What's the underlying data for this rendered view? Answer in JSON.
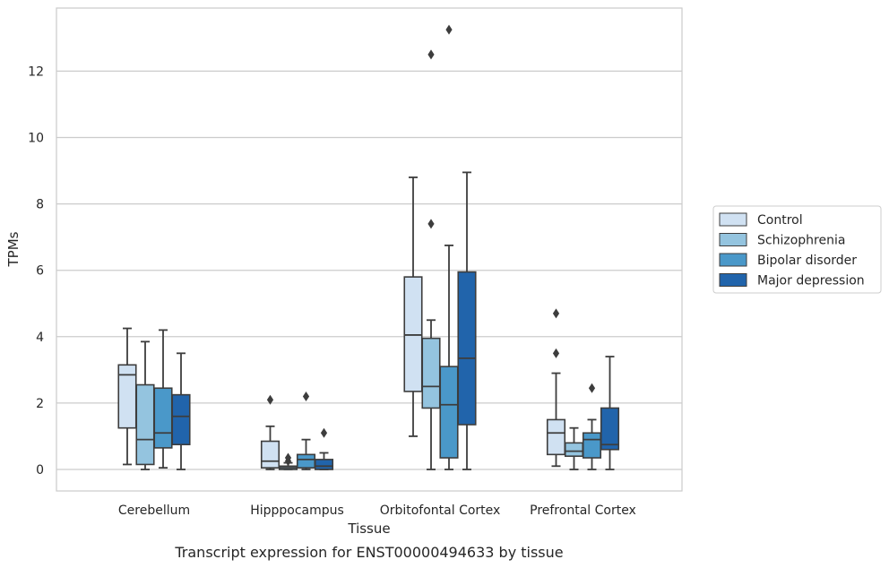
{
  "chart_data": {
    "type": "box",
    "xlabel": "Tissue",
    "ylabel": "TPMs",
    "caption": "Transcript expression for ENST00000494633 by tissue",
    "ylim": [
      -0.65,
      13.9
    ],
    "yticks": [
      0,
      2,
      4,
      6,
      8,
      10,
      12
    ],
    "grid": "horizontal",
    "legend_placement": "right",
    "categories": [
      "Cerebellum",
      "Hipppocampus",
      "Orbitofontal Cortex",
      "Prefrontal Cortex"
    ],
    "series": [
      {
        "name": "Control",
        "color": "#d0e1f2",
        "boxes": [
          {
            "whislo": 0.15,
            "q1": 1.25,
            "med": 2.85,
            "q3": 3.15,
            "whishi": 4.25,
            "fliers": []
          },
          {
            "whislo": 0.0,
            "q1": 0.05,
            "med": 0.25,
            "q3": 0.85,
            "whishi": 1.3,
            "fliers": [
              2.1
            ]
          },
          {
            "whislo": 1.0,
            "q1": 2.35,
            "med": 4.05,
            "q3": 5.8,
            "whishi": 8.8,
            "fliers": []
          },
          {
            "whislo": 0.1,
            "q1": 0.45,
            "med": 1.1,
            "q3": 1.5,
            "whishi": 2.9,
            "fliers": [
              3.5,
              4.7
            ]
          }
        ]
      },
      {
        "name": "Schizophrenia",
        "color": "#94c4df",
        "boxes": [
          {
            "whislo": 0.0,
            "q1": 0.15,
            "med": 0.9,
            "q3": 2.55,
            "whishi": 3.85,
            "fliers": []
          },
          {
            "whislo": 0.0,
            "q1": 0.0,
            "med": 0.05,
            "q3": 0.1,
            "whishi": 0.2,
            "fliers": [
              0.25,
              0.35
            ]
          },
          {
            "whislo": 0.0,
            "q1": 1.85,
            "med": 2.5,
            "q3": 3.95,
            "whishi": 4.5,
            "fliers": [
              7.4,
              12.5
            ]
          },
          {
            "whislo": 0.0,
            "q1": 0.4,
            "med": 0.55,
            "q3": 0.8,
            "whishi": 1.25,
            "fliers": []
          }
        ]
      },
      {
        "name": "Bipolar disorder",
        "color": "#4a98c9",
        "boxes": [
          {
            "whislo": 0.05,
            "q1": 0.65,
            "med": 1.1,
            "q3": 2.45,
            "whishi": 4.2,
            "fliers": []
          },
          {
            "whislo": 0.0,
            "q1": 0.05,
            "med": 0.3,
            "q3": 0.45,
            "whishi": 0.9,
            "fliers": [
              2.2
            ]
          },
          {
            "whislo": 0.0,
            "q1": 0.35,
            "med": 1.95,
            "q3": 3.1,
            "whishi": 6.75,
            "fliers": [
              13.25
            ]
          },
          {
            "whislo": 0.0,
            "q1": 0.35,
            "med": 0.9,
            "q3": 1.1,
            "whishi": 1.5,
            "fliers": [
              2.45
            ]
          }
        ]
      },
      {
        "name": "Major depression",
        "color": "#2164ab",
        "boxes": [
          {
            "whislo": 0.0,
            "q1": 0.75,
            "med": 1.6,
            "q3": 2.25,
            "whishi": 3.5,
            "fliers": []
          },
          {
            "whislo": 0.0,
            "q1": 0.0,
            "med": 0.1,
            "q3": 0.3,
            "whishi": 0.5,
            "fliers": [
              1.1
            ]
          },
          {
            "whislo": 0.0,
            "q1": 1.35,
            "med": 3.35,
            "q3": 5.95,
            "whishi": 8.95,
            "fliers": []
          },
          {
            "whislo": 0.0,
            "q1": 0.6,
            "med": 0.75,
            "q3": 1.85,
            "whishi": 3.4,
            "fliers": []
          }
        ]
      }
    ]
  }
}
